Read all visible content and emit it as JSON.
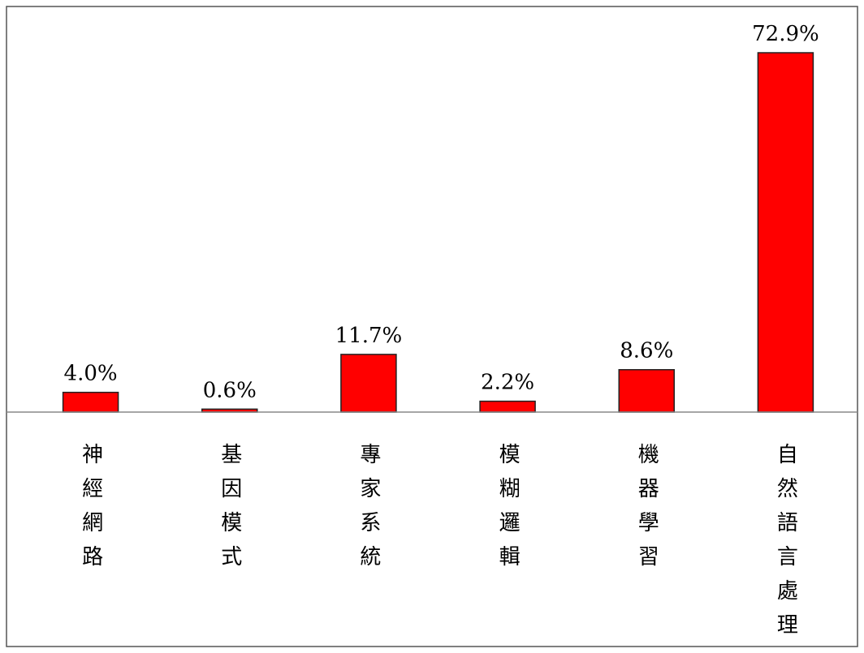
{
  "chart_data": {
    "type": "bar",
    "categories": [
      "神經網路",
      "基因模式",
      "專家系統",
      "模糊邏輯",
      "機器學習",
      "自然語言處理"
    ],
    "values": [
      4.0,
      0.6,
      11.7,
      2.2,
      8.6,
      72.9
    ],
    "value_labels": [
      "4.0%",
      "0.6%",
      "11.7%",
      "2.2%",
      "8.6%",
      "72.9%"
    ],
    "color": "#ff0000"
  }
}
